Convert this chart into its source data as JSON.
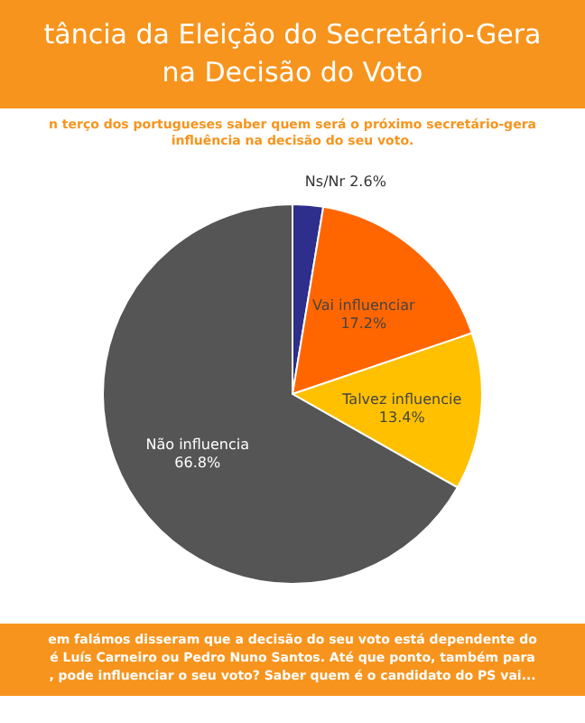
{
  "chart_data": {
    "type": "pie",
    "title": "tância da Eleição do Secretário-Gera\nna Decisão do Voto",
    "subtitle": "n terço dos portugueses saber quem será o próximo secretário-gera\ninfluência na decisão do seu voto.",
    "categories": [
      "Ns/Nr",
      "Vai influenciar",
      "Talvez influencie",
      "Não influencia"
    ],
    "values": [
      2.6,
      17.2,
      13.4,
      66.8
    ],
    "colors": [
      "#2e2e8c",
      "#ff6600",
      "#ffc000",
      "#555555"
    ],
    "value_labels": [
      "2.6%",
      "17.2%",
      "13.4%",
      "66.8%"
    ],
    "annotations": [
      "em falámos disseram que a decisão do seu voto está dependente do\né Luís Carneiro ou Pedro Nuno Santos. Até que ponto, também para\n, pode influenciar o seu voto? Saber quem é o candidato do PS vai..."
    ]
  }
}
